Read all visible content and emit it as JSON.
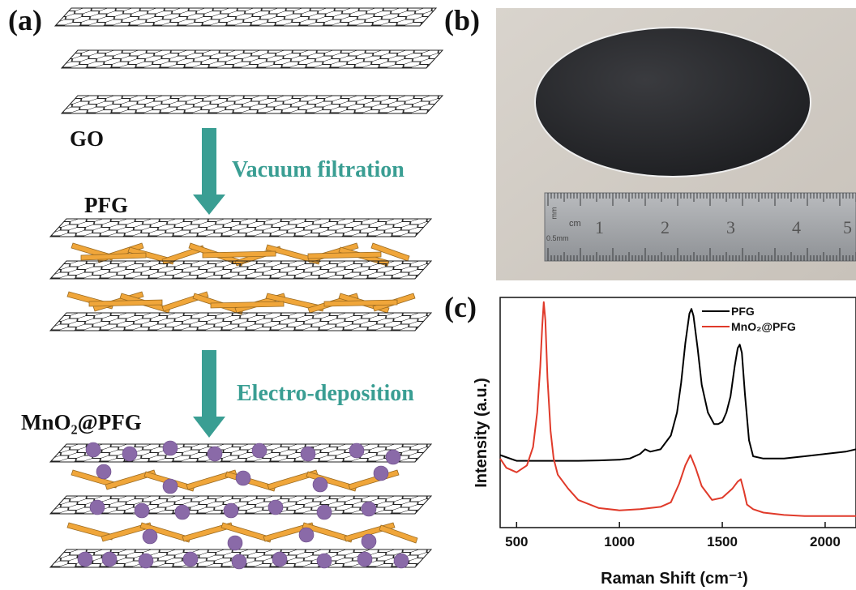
{
  "panel_a": {
    "letter": "(a)",
    "labels": {
      "go": "GO",
      "pfg": "PFG",
      "mno2pfg": "MnO₂@PFG"
    },
    "processes": {
      "step1": "Vacuum filtration",
      "step2": "Electro-deposition"
    },
    "colors": {
      "arrow": "#3a9e93",
      "rod": "#f0a63a",
      "rod_edge": "#9a6a20",
      "particle": "#8a6aa8",
      "sheet": "#222222"
    }
  },
  "panel_b": {
    "letter": "(b)",
    "ruler": {
      "unit_top": "mm",
      "unit_cm": "cm",
      "unit_small": "0.5mm",
      "numbers": [
        "1",
        "2",
        "3",
        "4",
        "5"
      ]
    }
  },
  "panel_c": {
    "letter": "(c)"
  },
  "chart_data": {
    "type": "line",
    "xlabel": "Raman Shift (cm⁻¹)",
    "ylabel": "Intensity (a.u.)",
    "xlim": [
      420,
      2150
    ],
    "ylim": [
      0,
      1
    ],
    "xticks": [
      500,
      1000,
      1500,
      2000
    ],
    "legend_position": "top-right",
    "series": [
      {
        "name": "PFG",
        "color": "#000000",
        "x": [
          420,
          500,
          600,
          700,
          800,
          900,
          1000,
          1050,
          1100,
          1125,
          1150,
          1200,
          1250,
          1280,
          1300,
          1320,
          1340,
          1350,
          1360,
          1380,
          1400,
          1430,
          1460,
          1480,
          1500,
          1520,
          1540,
          1560,
          1575,
          1585,
          1595,
          1610,
          1630,
          1650,
          1700,
          1800,
          1900,
          2000,
          2100,
          2150
        ],
        "y": [
          0.315,
          0.29,
          0.29,
          0.29,
          0.29,
          0.292,
          0.295,
          0.3,
          0.32,
          0.34,
          0.33,
          0.34,
          0.4,
          0.5,
          0.63,
          0.8,
          0.93,
          0.95,
          0.92,
          0.78,
          0.62,
          0.5,
          0.45,
          0.45,
          0.46,
          0.5,
          0.57,
          0.7,
          0.78,
          0.795,
          0.76,
          0.58,
          0.38,
          0.31,
          0.3,
          0.3,
          0.31,
          0.32,
          0.33,
          0.34
        ]
      },
      {
        "name": "MnO₂@PFG",
        "color": "#e03a2a",
        "x": [
          420,
          450,
          500,
          550,
          580,
          600,
          615,
          625,
          632,
          640,
          650,
          665,
          680,
          700,
          750,
          800,
          900,
          1000,
          1100,
          1200,
          1250,
          1290,
          1320,
          1345,
          1370,
          1400,
          1450,
          1500,
          1550,
          1575,
          1590,
          1605,
          1620,
          1650,
          1700,
          1800,
          1900,
          2000,
          2100,
          2150
        ],
        "y": [
          0.3,
          0.26,
          0.24,
          0.27,
          0.35,
          0.5,
          0.7,
          0.88,
          0.98,
          0.9,
          0.65,
          0.42,
          0.3,
          0.23,
          0.17,
          0.12,
          0.085,
          0.075,
          0.08,
          0.09,
          0.11,
          0.19,
          0.27,
          0.315,
          0.26,
          0.18,
          0.12,
          0.13,
          0.17,
          0.2,
          0.21,
          0.16,
          0.1,
          0.08,
          0.065,
          0.055,
          0.05,
          0.05,
          0.05,
          0.05
        ]
      }
    ]
  }
}
